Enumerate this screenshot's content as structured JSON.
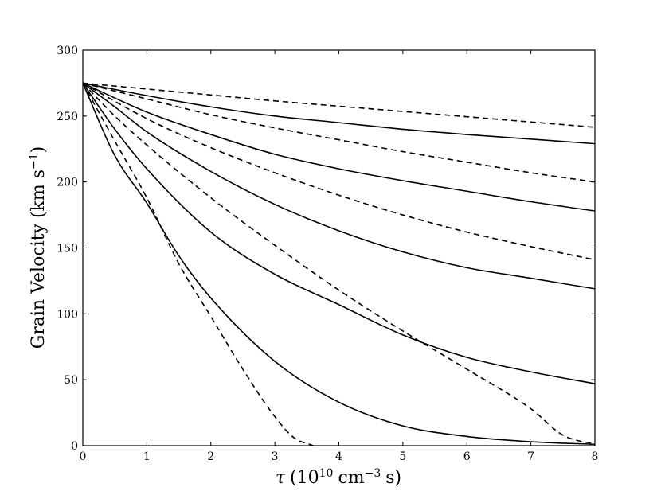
{
  "chart_data": {
    "type": "line",
    "title": "",
    "xlabel": {
      "symbol": "τ",
      "paren_open": "(",
      "base": "10",
      "base_exp": "10",
      "unit": "cm",
      "unit_exp": "−3",
      "suffix": "s)"
    },
    "ylabel": {
      "main": "Grain Velocity (km s",
      "exp": "−1",
      "close": ")"
    },
    "xlim": [
      0,
      8
    ],
    "ylim": [
      0,
      300
    ],
    "xticks": [
      0,
      1,
      2,
      3,
      4,
      5,
      6,
      7,
      8
    ],
    "yticks": [
      0,
      50,
      100,
      150,
      200,
      250,
      300
    ],
    "grid": false,
    "legend": "none",
    "series": [
      {
        "style": "dashed",
        "points": [
          [
            0,
            275
          ],
          [
            1,
            270.5
          ],
          [
            2,
            266
          ],
          [
            3,
            261.5
          ],
          [
            4,
            257.5
          ],
          [
            5,
            253.5
          ],
          [
            6,
            249.5
          ],
          [
            7,
            245.5
          ],
          [
            8,
            241.5
          ]
        ]
      },
      {
        "style": "solid",
        "points": [
          [
            0,
            275
          ],
          [
            1,
            265.5
          ],
          [
            2,
            257
          ],
          [
            3,
            250
          ],
          [
            4,
            245
          ],
          [
            5,
            240
          ],
          [
            6,
            236
          ],
          [
            7,
            232.5
          ],
          [
            8,
            229
          ]
        ]
      },
      {
        "style": "dashed",
        "points": [
          [
            0,
            275
          ],
          [
            1,
            263
          ],
          [
            2,
            251
          ],
          [
            3,
            241
          ],
          [
            4,
            232
          ],
          [
            5,
            223
          ],
          [
            6,
            215
          ],
          [
            7,
            207
          ],
          [
            8,
            200
          ]
        ]
      },
      {
        "style": "solid",
        "points": [
          [
            0,
            275
          ],
          [
            1,
            253
          ],
          [
            2,
            236
          ],
          [
            3,
            221
          ],
          [
            4,
            210
          ],
          [
            5,
            201
          ],
          [
            6,
            193
          ],
          [
            7,
            185
          ],
          [
            8,
            178
          ]
        ]
      },
      {
        "style": "dashed",
        "points": [
          [
            0,
            275
          ],
          [
            1,
            248
          ],
          [
            2,
            226
          ],
          [
            3,
            207
          ],
          [
            4,
            190
          ],
          [
            5,
            175
          ],
          [
            6,
            162
          ],
          [
            7,
            151
          ],
          [
            8,
            141
          ]
        ]
      },
      {
        "style": "solid",
        "points": [
          [
            0,
            275
          ],
          [
            0.5,
            257
          ],
          [
            1,
            238
          ],
          [
            2,
            208
          ],
          [
            3,
            183
          ],
          [
            4,
            163
          ],
          [
            5,
            147
          ],
          [
            6,
            135
          ],
          [
            7,
            127
          ],
          [
            8,
            119
          ]
        ]
      },
      {
        "style": "dashed",
        "points": [
          [
            0,
            275
          ],
          [
            0.5,
            250
          ],
          [
            1,
            228
          ],
          [
            2,
            188
          ],
          [
            3,
            152
          ],
          [
            4,
            118
          ],
          [
            5,
            87
          ],
          [
            6,
            58
          ],
          [
            7,
            28
          ],
          [
            7.5,
            8
          ],
          [
            8,
            1
          ]
        ]
      },
      {
        "style": "solid",
        "points": [
          [
            0,
            275
          ],
          [
            0.5,
            240
          ],
          [
            1,
            210
          ],
          [
            2,
            162
          ],
          [
            3,
            130
          ],
          [
            4,
            107
          ],
          [
            5,
            84
          ],
          [
            6,
            67
          ],
          [
            7,
            56
          ],
          [
            8,
            47
          ]
        ]
      },
      {
        "style": "solid",
        "points": [
          [
            0,
            275
          ],
          [
            0.5,
            220
          ],
          [
            1,
            184
          ],
          [
            1.5,
            144
          ],
          [
            2,
            112
          ],
          [
            3,
            64
          ],
          [
            4,
            33
          ],
          [
            5,
            15
          ],
          [
            6,
            7
          ],
          [
            7,
            3
          ],
          [
            8,
            1
          ]
        ]
      },
      {
        "style": "dashed",
        "points": [
          [
            0,
            275
          ],
          [
            0.5,
            231
          ],
          [
            1,
            188
          ],
          [
            1.5,
            138
          ],
          [
            2,
            98
          ],
          [
            2.5,
            58
          ],
          [
            3,
            22
          ],
          [
            3.3,
            6
          ],
          [
            3.6,
            0
          ]
        ]
      }
    ]
  }
}
